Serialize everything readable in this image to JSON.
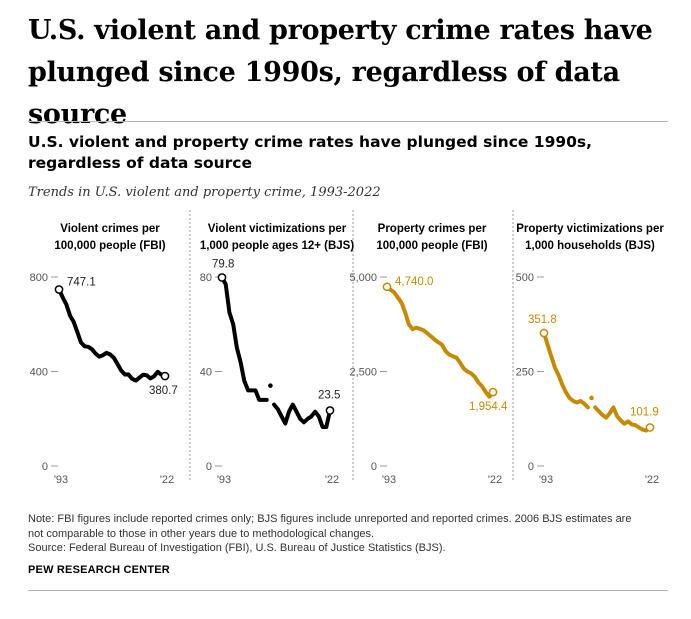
{
  "headline": "U.S. violent and property crime rates have plunged since 1990s, regardless of data source",
  "chart_title": "U.S. violent and property crime rates have plunged since 1990s, regardless of data source",
  "subtitle": "Trends in U.S. violent and property crime, 1993-2022",
  "note_lines": [
    "Note: FBI figures include reported crimes only; BJS figures include unreported and reported crimes. 2006 BJS estimates are",
    "not comparable to those in other years due to methodological changes.",
    "Source: Federal Bureau of Investigation (FBI), U.S. Bureau of Justice Statistics (BJS)."
  ],
  "brand": "PEW RESEARCH CENTER",
  "colors": {
    "violent": "#000000",
    "property": "#c58b00",
    "axis": "#999999",
    "divider": "#9a9a9a"
  },
  "chart_data": [
    {
      "type": "line",
      "title": [
        "Violent crimes per",
        "100,000 people (FBI)"
      ],
      "color": "#000000",
      "ylim": [
        0,
        800
      ],
      "yticks": [
        0,
        400,
        800
      ],
      "ytick_labels": [
        "0",
        "400",
        "800"
      ],
      "xticks": [
        1993,
        2022
      ],
      "xtick_labels": [
        "'93",
        "'22"
      ],
      "start_label": "747.1",
      "end_label": "380.7",
      "segments": [
        {
          "x": [
            1993,
            1994,
            1995,
            1996,
            1997,
            1998,
            1999,
            2000,
            2001,
            2002,
            2003,
            2004,
            2005,
            2006,
            2007,
            2008,
            2009,
            2010,
            2011,
            2012,
            2013,
            2014,
            2015,
            2016,
            2017,
            2018,
            2019,
            2020,
            2021,
            2022
          ],
          "y": [
            747.1,
            713.6,
            684.5,
            636.6,
            611.0,
            567.6,
            523.0,
            506.5,
            504.5,
            494.4,
            475.8,
            463.2,
            469.0,
            479.3,
            471.8,
            458.6,
            431.9,
            404.5,
            387.1,
            387.8,
            369.1,
            361.6,
            373.7,
            386.3,
            383.8,
            370.8,
            379.4,
            398.5,
            387.0,
            380.7
          ]
        }
      ]
    },
    {
      "type": "line",
      "title": [
        "Violent victimizations per",
        "1,000 people ages 12+ (BJS)"
      ],
      "color": "#000000",
      "ylim": [
        0,
        80
      ],
      "yticks": [
        0,
        40,
        80
      ],
      "ytick_labels": [
        "0",
        "40",
        "80"
      ],
      "xticks": [
        1993,
        2022
      ],
      "xtick_labels": [
        "'93",
        "'22"
      ],
      "start_label": "79.8",
      "end_label": "23.5",
      "segments": [
        {
          "x": [
            1993,
            1994,
            1995,
            1996,
            1997,
            1998,
            1999,
            2000,
            2001,
            2002,
            2003,
            2004,
            2005
          ],
          "y": [
            79.8,
            77.0,
            65.0,
            60.0,
            50.0,
            44.0,
            36.0,
            32.0,
            32.0,
            32.0,
            28.0,
            28.0,
            28.0
          ]
        },
        {
          "x": [
            2006
          ],
          "y": [
            34.0
          ]
        },
        {
          "x": [
            2007,
            2008,
            2009,
            2010,
            2011,
            2012,
            2013,
            2014,
            2015,
            2016,
            2017,
            2018,
            2019,
            2020,
            2021,
            2022
          ],
          "y": [
            26.0,
            24.0,
            21.0,
            18.0,
            23.0,
            26.0,
            23.0,
            20.0,
            18.5,
            20.0,
            21.0,
            23.0,
            21.0,
            16.5,
            16.5,
            23.5
          ]
        }
      ]
    },
    {
      "type": "line",
      "title": [
        "Property crimes per",
        "100,000 people (FBI)"
      ],
      "color": "#c58b00",
      "ylim": [
        0,
        5000
      ],
      "yticks": [
        0,
        2500,
        5000
      ],
      "ytick_labels": [
        "0",
        "2,500",
        "5,000"
      ],
      "xticks": [
        1993,
        2022
      ],
      "xtick_labels": [
        "'93",
        "'22"
      ],
      "start_label": "4,740.0",
      "end_label": "1,954.4",
      "segments": [
        {
          "x": [
            1993,
            1994,
            1995,
            1996,
            1997,
            1998,
            1999,
            2000,
            2001,
            2002,
            2003,
            2004,
            2005,
            2006,
            2007,
            2008,
            2009,
            2010,
            2011,
            2012,
            2013,
            2014,
            2015,
            2016,
            2017,
            2018,
            2019,
            2020,
            2021,
            2022
          ],
          "y": [
            4740.0,
            4660.2,
            4590.5,
            4451.0,
            4316.3,
            4052.5,
            3743.6,
            3618.3,
            3658.1,
            3630.6,
            3591.2,
            3514.1,
            3431.5,
            3346.6,
            3276.4,
            3214.6,
            3041.3,
            2945.9,
            2905.4,
            2868.0,
            2733.6,
            2574.1,
            2500.5,
            2451.6,
            2362.9,
            2209.8,
            2109.9,
            1958.2,
            1832.3,
            1954.4
          ]
        }
      ]
    },
    {
      "type": "line",
      "title": [
        "Property victimizations per",
        "1,000 households (BJS)"
      ],
      "color": "#c58b00",
      "ylim": [
        0,
        500
      ],
      "yticks": [
        0,
        250,
        500
      ],
      "ytick_labels": [
        "0",
        "250",
        "500"
      ],
      "xticks": [
        1993,
        2022
      ],
      "xtick_labels": [
        "'93",
        "'22"
      ],
      "start_label": "351.8",
      "end_label": "101.9",
      "segments": [
        {
          "x": [
            1993,
            1994,
            1995,
            1996,
            1997,
            1998,
            1999,
            2000,
            2001,
            2002,
            2003,
            2004,
            2005
          ],
          "y": [
            351.8,
            320.0,
            290.0,
            260.0,
            240.0,
            215.0,
            195.0,
            180.0,
            172.0,
            168.0,
            172.0,
            165.0,
            155.0
          ]
        },
        {
          "x": [
            2006
          ],
          "y": [
            180.0
          ]
        },
        {
          "x": [
            2007,
            2008,
            2009,
            2010,
            2011,
            2012,
            2013,
            2014,
            2015,
            2016,
            2017,
            2018,
            2019,
            2020,
            2021,
            2022
          ],
          "y": [
            155.0,
            145.0,
            135.0,
            128.0,
            140.0,
            155.0,
            132.0,
            120.0,
            112.0,
            118.0,
            110.0,
            108.0,
            102.0,
            96.0,
            94.0,
            101.9
          ]
        }
      ]
    }
  ]
}
